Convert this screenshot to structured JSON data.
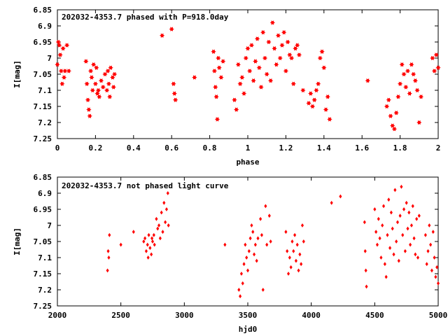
{
  "chart_data": [
    {
      "type": "scatter",
      "title": "202032-4353.7 phased with P=918.0day",
      "xlabel": "phase",
      "ylabel": "I[mag]",
      "xlim": [
        0,
        2
      ],
      "ylim": [
        7.25,
        6.85
      ],
      "y_inverted": true,
      "xticks": [
        "0",
        "0.2",
        "0.4",
        "0.6",
        "0.8",
        "1",
        "1.2",
        "1.4",
        "1.6",
        "1.8",
        "2"
      ],
      "xtick_values": [
        0,
        0.2,
        0.4,
        0.6,
        0.8,
        1.0,
        1.2,
        1.4,
        1.6,
        1.8,
        2.0
      ],
      "yticks": [
        "6.85",
        "6.9",
        "6.95",
        "7",
        "7.05",
        "7.1",
        "7.15",
        "7.2",
        "7.25"
      ],
      "ytick_values": [
        6.85,
        6.9,
        6.95,
        7.0,
        7.05,
        7.1,
        7.15,
        7.2,
        7.25
      ],
      "marker": "star",
      "color": "#ff0000",
      "series": [
        {
          "x": [
            0.0,
            0.005,
            0.01,
            0.015,
            0.02,
            0.025,
            0.03,
            0.035,
            0.04,
            0.05,
            0.06,
            0.15,
            0.155,
            0.16,
            0.165,
            0.17,
            0.175,
            0.18,
            0.185,
            0.19,
            0.2,
            0.205,
            0.21,
            0.215,
            0.22,
            0.23,
            0.24,
            0.25,
            0.26,
            0.265,
            0.27,
            0.275,
            0.28,
            0.29,
            0.295,
            0.3,
            0.55,
            0.6,
            0.61,
            0.615,
            0.62,
            0.72,
            0.82,
            0.825,
            0.83,
            0.835,
            0.84,
            0.845,
            0.85,
            0.86,
            0.87,
            0.93,
            0.94,
            0.95,
            0.96,
            0.97,
            0.98,
            0.99,
            1.0,
            1.01,
            1.02,
            1.03,
            1.04,
            1.05,
            1.06,
            1.07,
            1.08,
            1.09,
            1.1,
            1.11,
            1.12,
            1.13,
            1.14,
            1.15,
            1.16,
            1.17,
            1.18,
            1.19,
            1.2,
            1.21,
            1.22,
            1.23,
            1.24,
            1.25,
            1.26,
            1.27,
            1.29,
            1.32,
            1.33,
            1.34,
            1.35,
            1.36,
            1.37,
            1.38,
            1.39,
            1.4,
            1.41,
            1.42,
            1.43,
            1.63,
            1.73,
            1.74,
            1.75,
            1.76,
            1.77,
            1.78,
            1.79,
            1.8,
            1.81,
            1.82,
            1.83,
            1.84,
            1.85,
            1.86,
            1.87,
            1.88,
            1.89,
            1.9,
            1.91,
            1.97,
            1.98,
            1.99,
            2.0
          ],
          "y": [
            7.02,
            6.95,
            6.96,
            6.99,
            7.04,
            7.08,
            6.97,
            7.06,
            7.04,
            6.96,
            7.04,
            7.01,
            7.08,
            7.13,
            7.16,
            7.18,
            7.04,
            7.06,
            7.1,
            7.02,
            7.08,
            7.03,
            7.11,
            7.1,
            7.12,
            7.07,
            7.09,
            7.05,
            7.1,
            7.04,
            7.08,
            7.12,
            7.03,
            7.06,
            7.09,
            7.05,
            6.93,
            6.91,
            7.08,
            7.11,
            7.13,
            7.06,
            6.98,
            7.04,
            7.09,
            7.12,
            7.19,
            7.0,
            7.03,
            7.06,
            7.01,
            7.13,
            7.16,
            7.02,
            7.08,
            7.06,
            7.11,
            7.0,
            6.97,
            7.04,
            6.96,
            7.07,
            7.01,
            6.94,
            7.03,
            7.09,
            6.92,
            7.0,
            7.05,
            6.95,
            7.07,
            6.89,
            6.97,
            7.02,
            6.93,
            7.0,
            6.96,
            6.92,
            7.04,
            6.95,
            6.99,
            7.0,
            7.08,
            6.97,
            6.96,
            6.99,
            7.1,
            7.14,
            7.11,
            7.15,
            7.13,
            7.1,
            7.08,
            7.0,
            6.98,
            7.03,
            7.16,
            7.12,
            7.19,
            7.07,
            7.15,
            7.13,
            7.18,
            7.21,
            7.22,
            7.17,
            7.12,
            7.08,
            7.02,
            7.05,
            7.09,
            7.04,
            7.11,
            7.02,
            7.05,
            7.07,
            7.1,
            7.2,
            7.12,
            7.0,
            7.04,
            6.99,
            7.03
          ]
        }
      ]
    },
    {
      "type": "scatter",
      "title": "202032-4353.7 not phased light curve",
      "xlabel": "hjd0",
      "ylabel": "I[mag]",
      "xlim": [
        2000,
        5000
      ],
      "ylim": [
        7.25,
        6.85
      ],
      "y_inverted": true,
      "xticks": [
        "2000",
        "2500",
        "3000",
        "3500",
        "4000",
        "4500",
        "5000"
      ],
      "xtick_values": [
        2000,
        2500,
        3000,
        3500,
        4000,
        4500,
        5000
      ],
      "yticks": [
        "6.85",
        "6.9",
        "6.95",
        "7",
        "7.05",
        "7.1",
        "7.15",
        "7.2",
        "7.25"
      ],
      "ytick_values": [
        6.85,
        6.9,
        6.95,
        7.0,
        7.05,
        7.1,
        7.15,
        7.2,
        7.25
      ],
      "marker": "diamond",
      "color": "#ff0000",
      "series": [
        {
          "x": [
            2395,
            2400,
            2405,
            2410,
            2500,
            2600,
            2680,
            2690,
            2700,
            2710,
            2715,
            2720,
            2730,
            2740,
            2745,
            2750,
            2760,
            2765,
            2780,
            2790,
            2800,
            2810,
            2820,
            2830,
            2840,
            2850,
            2860,
            2870,
            2875,
            3320,
            3430,
            3440,
            3450,
            3460,
            3470,
            3480,
            3490,
            3500,
            3510,
            3520,
            3530,
            3540,
            3550,
            3560,
            3570,
            3580,
            3600,
            3610,
            3620,
            3640,
            3650,
            3670,
            3680,
            3800,
            3810,
            3820,
            3830,
            3840,
            3850,
            3860,
            3870,
            3880,
            3890,
            3900,
            3910,
            3920,
            3930,
            3940,
            4160,
            4230,
            4420,
            4425,
            4430,
            4435,
            4500,
            4510,
            4520,
            4530,
            4540,
            4550,
            4560,
            4570,
            4580,
            4590,
            4600,
            4610,
            4620,
            4630,
            4640,
            4650,
            4660,
            4670,
            4680,
            4690,
            4700,
            4710,
            4720,
            4730,
            4740,
            4750,
            4760,
            4770,
            4780,
            4790,
            4800,
            4810,
            4820,
            4830,
            4840,
            4850,
            4900,
            4910,
            4920,
            4930,
            4940,
            4950,
            4960,
            4970,
            4980,
            4990,
            5000
          ],
          "y": [
            7.14,
            7.08,
            7.1,
            7.03,
            7.06,
            7.02,
            7.05,
            7.04,
            7.08,
            7.06,
            7.1,
            7.03,
            7.07,
            7.09,
            7.04,
            7.05,
            7.03,
            7.06,
            6.98,
            7.01,
            7.0,
            7.04,
            6.96,
            7.02,
            6.93,
            6.99,
            6.95,
            6.9,
            7.0,
            7.06,
            7.2,
            7.22,
            7.15,
            7.18,
            7.12,
            7.06,
            7.1,
            7.14,
            7.08,
            7.04,
            7.0,
            7.02,
            7.09,
            7.06,
            7.11,
            7.04,
            6.98,
            7.03,
            7.2,
            6.94,
            7.06,
            6.97,
            7.05,
            7.02,
            7.08,
            7.15,
            7.1,
            7.13,
            7.05,
            7.08,
            7.03,
            7.11,
            7.06,
            7.14,
            7.09,
            7.12,
            7.0,
            7.05,
            6.93,
            6.91,
            6.99,
            7.08,
            7.14,
            7.19,
            6.95,
            7.02,
            7.06,
            6.98,
            7.04,
            7.1,
            7.0,
            6.94,
            7.12,
            7.16,
            7.03,
            6.92,
            7.07,
            6.96,
            7.01,
            7.09,
            6.89,
            7.05,
            6.99,
            7.11,
            6.97,
            6.88,
            7.03,
            6.95,
            7.08,
            6.93,
            7.01,
            6.96,
            7.06,
            7.0,
            6.94,
            7.04,
            7.09,
            6.98,
            7.1,
            6.97,
            7.03,
            7.12,
            7.08,
            7.0,
            7.06,
            7.14,
            7.02,
            7.1,
            7.16,
            7.13,
            7.18
          ]
        }
      ]
    }
  ]
}
